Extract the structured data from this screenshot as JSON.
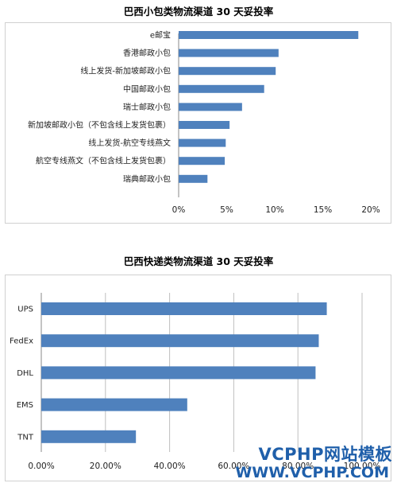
{
  "chart_data": [
    {
      "type": "bar",
      "orientation": "horizontal",
      "title": "巴西小包类物流渠道 30 天妥投率",
      "categories": [
        "e邮宝",
        "香港邮政小包",
        "线上发货-新加坡邮政小包",
        "中国邮政小包",
        "瑞士邮政小包",
        "新加坡邮政小包（不包含线上发货包裹）",
        "线上发货-航空专线燕文",
        "航空专线燕文（不包含线上发货包裹）",
        "瑞典邮政小包"
      ],
      "values": [
        0.187,
        0.104,
        0.101,
        0.089,
        0.066,
        0.053,
        0.049,
        0.048,
        0.03
      ],
      "xlim": [
        0,
        0.2
      ],
      "xticks": [
        0,
        0.05,
        0.1,
        0.15,
        0.2
      ],
      "xtick_labels": [
        "0%",
        "5%",
        "10%",
        "15%",
        "20%"
      ],
      "bar_color": "#4f81bd",
      "grid": false
    },
    {
      "type": "bar",
      "orientation": "horizontal",
      "title": "巴西快递类物流渠道 30 天妥投率",
      "categories": [
        "UPS",
        "FedEx",
        "DHL",
        "EMS",
        "TNT"
      ],
      "values": [
        0.89,
        0.865,
        0.855,
        0.455,
        0.295
      ],
      "xlim": [
        0,
        1.0
      ],
      "xticks": [
        0,
        0.2,
        0.4,
        0.6,
        0.8,
        1.0
      ],
      "xtick_labels": [
        "0.00%",
        "20.00%",
        "40.00%",
        "60.00%",
        "80.00%",
        "100.00%"
      ],
      "bar_color": "#4f81bd",
      "grid": true
    }
  ],
  "watermark": {
    "text": "VCPHP网站模板",
    "url": "WWW.VCPHP.COM"
  }
}
